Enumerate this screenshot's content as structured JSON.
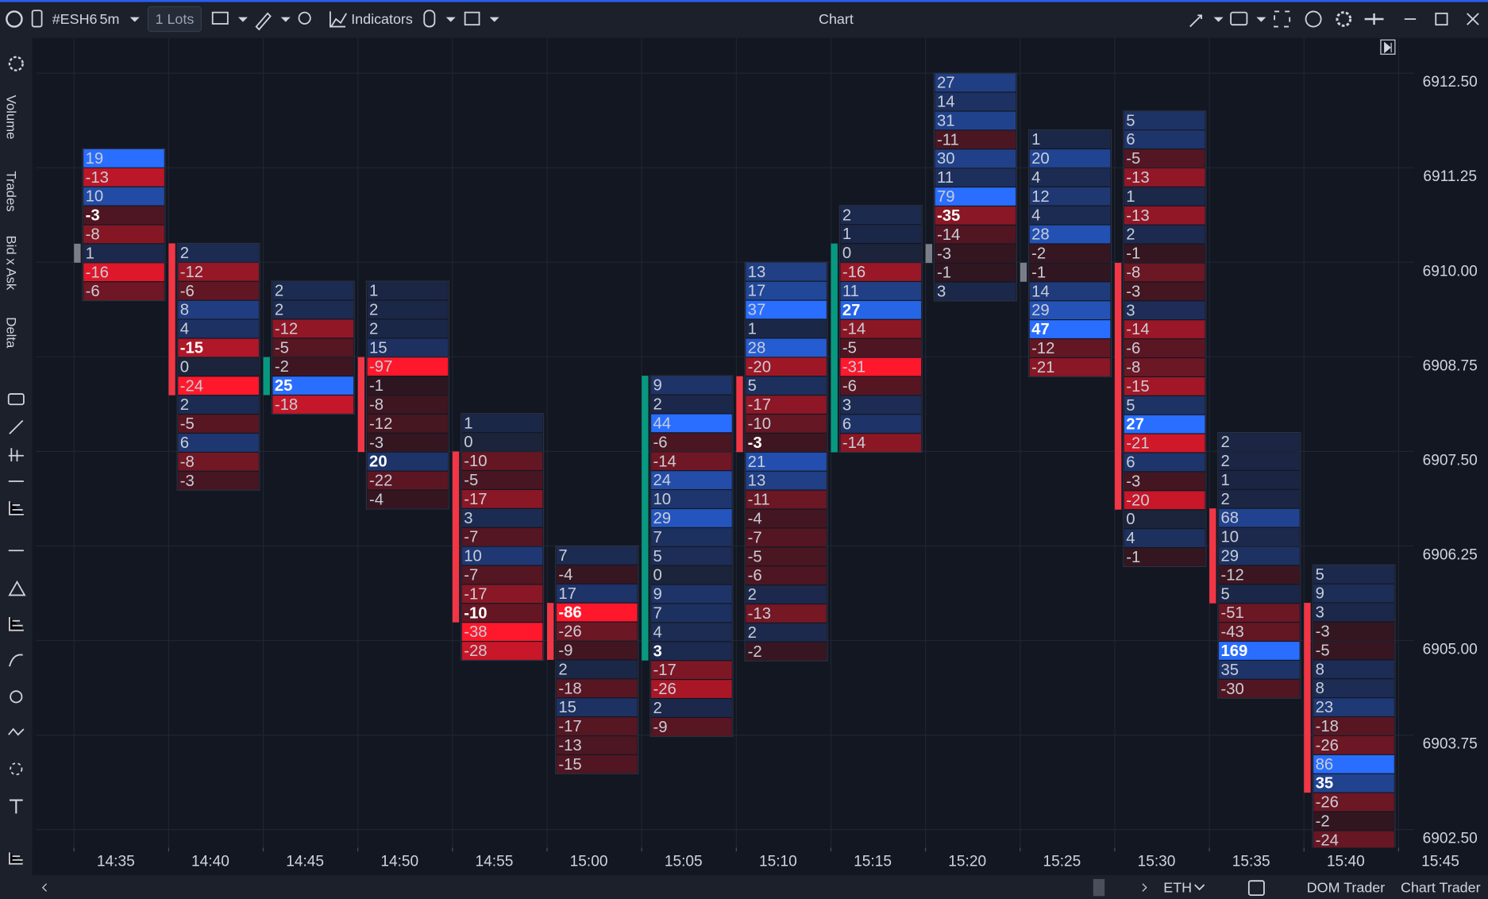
{
  "toolbar": {
    "symbol": "#ESH6",
    "interval": "5m",
    "lots": "1 Lots",
    "indicators": "Indicators",
    "title": "Chart"
  },
  "sidebar": {
    "tabs": [
      "Volume",
      "Trades",
      "Bid x Ask",
      "Delta"
    ]
  },
  "chart": {
    "price_ticks": [
      {
        "value": 6912.5,
        "label": "6912.50"
      },
      {
        "value": 6911.25,
        "label": "6911.25"
      },
      {
        "value": 6910,
        "label": "6910.00"
      },
      {
        "value": 6908.75,
        "label": "6908.75"
      },
      {
        "value": 6907.5,
        "label": "6907.50"
      },
      {
        "value": 6906.25,
        "label": "6906.25"
      },
      {
        "value": 6905,
        "label": "6905.00"
      },
      {
        "value": 6903.75,
        "label": "6903.75"
      },
      {
        "value": 6902.5,
        "label": "6902.50"
      }
    ],
    "time_labels": [
      "14:35",
      "14:40",
      "14:45",
      "14:50",
      "14:55",
      "15:00",
      "15:05",
      "15:10",
      "15:15",
      "15:20",
      "15:25",
      "15:30",
      "15:35",
      "15:40",
      "15:45"
    ],
    "columns": [
      {
        "top": 6911.5,
        "values": [
          19,
          -13,
          10,
          -3,
          -8,
          1,
          -16,
          -6
        ],
        "poc": 3,
        "bar": [
          5,
          5
        ],
        "bar_color": "gray"
      },
      {
        "top": 6910.25,
        "values": [
          2,
          -12,
          -6,
          8,
          4,
          -15,
          0,
          -24,
          2,
          -5,
          6,
          -8,
          -3
        ],
        "poc": 5,
        "bar": [
          0,
          7
        ],
        "bar_color": "red"
      },
      {
        "top": 6909.75,
        "values": [
          2,
          2,
          -12,
          -5,
          -2,
          25,
          -18
        ],
        "poc": 5,
        "bar": [
          4,
          5
        ],
        "bar_color": "green"
      },
      {
        "top": 6909.75,
        "values": [
          1,
          2,
          2,
          15,
          -97,
          -1,
          -8,
          -12,
          -3,
          20,
          -22,
          -4
        ],
        "poc": 9,
        "bar": [
          4,
          8
        ],
        "bar_color": "red"
      },
      {
        "top": 6908,
        "values": [
          1,
          0,
          -10,
          -5,
          -17,
          3,
          -7,
          10,
          -7,
          -17,
          -10,
          -38,
          -28
        ],
        "poc": 10,
        "bar": [
          2,
          10
        ],
        "bar_color": "red"
      },
      {
        "top": 6906.25,
        "values": [
          7,
          -4,
          17,
          -86,
          -26,
          -9,
          2,
          -18,
          15,
          -17,
          -13,
          -15
        ],
        "poc": 3,
        "bar": [
          3,
          5
        ],
        "bar_color": "red"
      },
      {
        "top": 6908.5,
        "values": [
          9,
          2,
          44,
          -6,
          -14,
          24,
          10,
          29,
          7,
          5,
          0,
          9,
          7,
          4,
          3,
          -17,
          -26,
          2,
          -9
        ],
        "poc": 14,
        "bar": [
          0,
          14
        ],
        "bar_color": "green"
      },
      {
        "top": 6910,
        "values": [
          13,
          17,
          37,
          1,
          28,
          -20,
          5,
          -17,
          -10,
          -3,
          21,
          13,
          -11,
          -4,
          -7,
          -5,
          -6,
          2,
          -13,
          2,
          -2
        ],
        "poc": 9,
        "bar": [
          6,
          9
        ],
        "bar_color": "red"
      },
      {
        "top": 6910.75,
        "values": [
          2,
          1,
          0,
          -16,
          11,
          27,
          -14,
          -5,
          -31,
          -6,
          3,
          6,
          -14
        ],
        "poc": 5,
        "bar": [
          2,
          12
        ],
        "bar_color": "green"
      },
      {
        "top": 6912.5,
        "values": [
          27,
          14,
          31,
          -11,
          30,
          11,
          79,
          -35,
          -14,
          -3,
          -1,
          3
        ],
        "poc": 7,
        "bar": [
          9,
          9
        ],
        "bar_color": "gray"
      },
      {
        "top": 6911.75,
        "values": [
          1,
          20,
          4,
          12,
          4,
          28,
          -2,
          -1,
          14,
          29,
          47,
          -12,
          -21
        ],
        "poc": 10,
        "bar": [
          7,
          7
        ],
        "bar_color": "gray"
      },
      {
        "top": 6912,
        "values": [
          5,
          6,
          -5,
          -13,
          1,
          -13,
          2,
          -1,
          -8,
          -3,
          3,
          -14,
          -6,
          -8,
          -15,
          5,
          27,
          -21,
          6,
          -3,
          -20,
          0,
          4,
          -1
        ],
        "poc": 16,
        "bar": [
          8,
          20
        ],
        "bar_color": "red"
      },
      {
        "top": 6907.75,
        "values": [
          2,
          2,
          1,
          2,
          68,
          10,
          29,
          -12,
          5,
          -51,
          -43,
          169,
          35,
          -30
        ],
        "poc": 11,
        "bar": [
          4,
          8
        ],
        "bar_color": "red"
      },
      {
        "top": 6906,
        "values": [
          5,
          9,
          3,
          -3,
          -5,
          8,
          8,
          23,
          -18,
          -26,
          86,
          35,
          -26,
          -2,
          -24
        ],
        "poc": 11,
        "bar": [
          2,
          11
        ],
        "bar_color": "red"
      }
    ]
  },
  "bottom": {
    "session": "ETH",
    "dom_trader": "DOM Trader",
    "chart_trader": "Chart Trader"
  }
}
